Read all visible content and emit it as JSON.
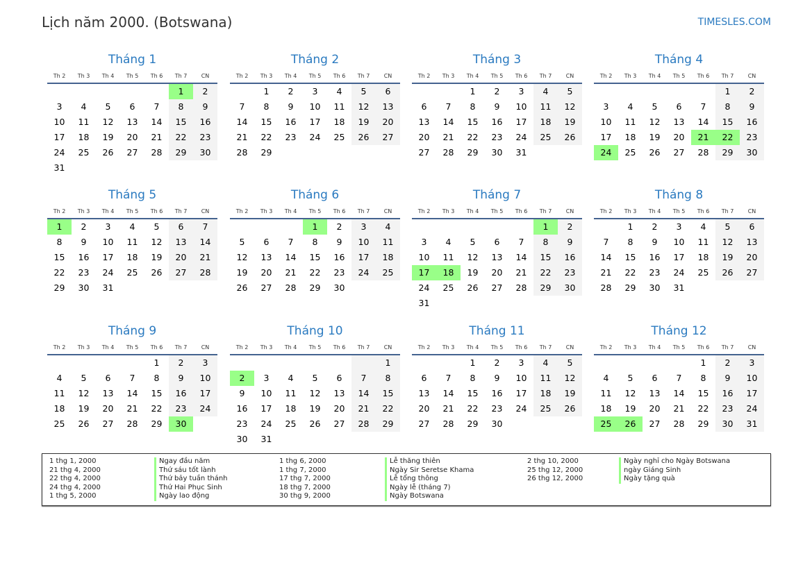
{
  "header": {
    "title": "Lịch năm 2000. (Botswana)",
    "site": "TIMESLES.COM"
  },
  "weekdays": [
    "Th 2",
    "Th 3",
    "Th 4",
    "Th 5",
    "Th 6",
    "Th 7",
    "CN"
  ],
  "colors": {
    "accent": "#2a7ac0",
    "holiday": "#99ff88",
    "weekend": "#f3f3f3",
    "rule": "#43628f"
  },
  "months": [
    {
      "title": "Tháng 1",
      "first_weekday": "Th 7",
      "days": 31,
      "holidays": [
        1
      ]
    },
    {
      "title": "Tháng 2",
      "first_weekday": "Th 3",
      "days": 29,
      "holidays": []
    },
    {
      "title": "Tháng 3",
      "first_weekday": "Th 4",
      "days": 31,
      "holidays": []
    },
    {
      "title": "Tháng 4",
      "first_weekday": "Th 7",
      "days": 30,
      "holidays": [
        21,
        22,
        24
      ]
    },
    {
      "title": "Tháng 5",
      "first_weekday": "Th 2",
      "days": 31,
      "holidays": [
        1
      ]
    },
    {
      "title": "Tháng 6",
      "first_weekday": "Th 5",
      "days": 30,
      "holidays": [
        1
      ]
    },
    {
      "title": "Tháng 7",
      "first_weekday": "Th 7",
      "days": 31,
      "holidays": [
        1,
        17,
        18
      ]
    },
    {
      "title": "Tháng 8",
      "first_weekday": "Th 3",
      "days": 31,
      "holidays": []
    },
    {
      "title": "Tháng 9",
      "first_weekday": "Th 6",
      "days": 30,
      "holidays": [
        30
      ]
    },
    {
      "title": "Tháng 10",
      "first_weekday": "CN",
      "days": 31,
      "holidays": [
        2
      ]
    },
    {
      "title": "Tháng 11",
      "first_weekday": "Th 4",
      "days": 30,
      "holidays": []
    },
    {
      "title": "Tháng 12",
      "first_weekday": "Th 6",
      "days": 31,
      "holidays": [
        25,
        26
      ]
    }
  ],
  "legend": [
    [
      {
        "date": "1 thg 1, 2000",
        "name": "Ngay đầu năm"
      },
      {
        "date": "21 thg 4, 2000",
        "name": "Thứ sáu tốt lành"
      },
      {
        "date": "22 thg 4, 2000",
        "name": "Thứ bảy tuần thánh"
      },
      {
        "date": "24 thg 4, 2000",
        "name": "Thứ Hai Phục Sinh"
      },
      {
        "date": "1 thg 5, 2000",
        "name": "Ngày lao động"
      }
    ],
    [
      {
        "date": "1 thg 6, 2000",
        "name": "Lễ thăng thiên"
      },
      {
        "date": "1 thg 7, 2000",
        "name": "Ngày Sir Seretse Khama"
      },
      {
        "date": "17 thg 7, 2000",
        "name": "Lễ tổng thông"
      },
      {
        "date": "18 thg 7, 2000",
        "name": "Ngày lễ (tháng 7)"
      },
      {
        "date": "30 thg 9, 2000",
        "name": "Ngày Botswana"
      }
    ],
    [
      {
        "date": "2 thg 10, 2000",
        "name": "Ngày nghỉ cho Ngày Botswana"
      },
      {
        "date": "25 thg 12, 2000",
        "name": "ngày Giáng Sinh"
      },
      {
        "date": "26 thg 12, 2000",
        "name": "Ngày tặng quà"
      }
    ]
  ]
}
